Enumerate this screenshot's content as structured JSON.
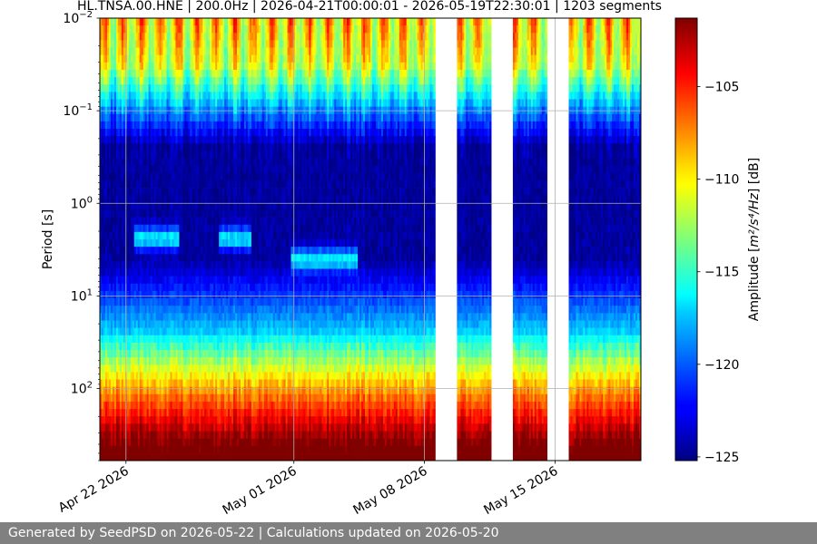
{
  "chart_data": {
    "type": "heatmap",
    "title": "HL.TNSA.00.HNE | 200.0Hz | 2026-04-21T00:00:01 - 2026-05-19T22:30:01 | 1203 segments",
    "ylabel": "Period [s]",
    "y_scale": "log",
    "y_inverted": true,
    "y_ticks": [
      {
        "value": 0.01,
        "base": "10",
        "exp": "−2"
      },
      {
        "value": 0.1,
        "base": "10",
        "exp": "−1"
      },
      {
        "value": 1,
        "base": "10",
        "exp": "0"
      },
      {
        "value": 10,
        "base": "10",
        "exp": "1"
      },
      {
        "value": 100,
        "base": "10",
        "exp": "2"
      }
    ],
    "ylim": [
      0.01,
      600
    ],
    "x_ticks": [
      "Apr 22 2026",
      "May 01 2026",
      "May 08 2026",
      "May 15 2026"
    ],
    "x_tick_days": [
      1.4,
      10.4,
      17.4,
      24.4
    ],
    "x_range_days": [
      0,
      29
    ],
    "data_gaps_days": [
      [
        18,
        19.1
      ],
      [
        21,
        22.1
      ],
      [
        24,
        25.1
      ]
    ],
    "grid": true,
    "colorbar": {
      "label_prefix": "Amplitude [",
      "label_units": "m²/s⁴/Hz",
      "label_suffix": "] [dB]",
      "range": [
        -125.2,
        -101.3
      ],
      "ticks": [
        "−105",
        "−110",
        "−115",
        "−120",
        "−125"
      ],
      "tick_values": [
        -105,
        -110,
        -115,
        -120,
        -125
      ],
      "colormap": "jet"
    },
    "noise_events": [
      {
        "day_start": 1.8,
        "day_end": 4.3,
        "period": 2.4
      },
      {
        "day_start": 6.4,
        "day_end": 8.1,
        "period": 2.4
      },
      {
        "day_start": 10.2,
        "day_end": 13.8,
        "period": 4.0
      }
    ]
  },
  "footer": {
    "text": "Generated by SeedPSD on 2026-05-22 | Calculations updated on 2026-05-20"
  }
}
